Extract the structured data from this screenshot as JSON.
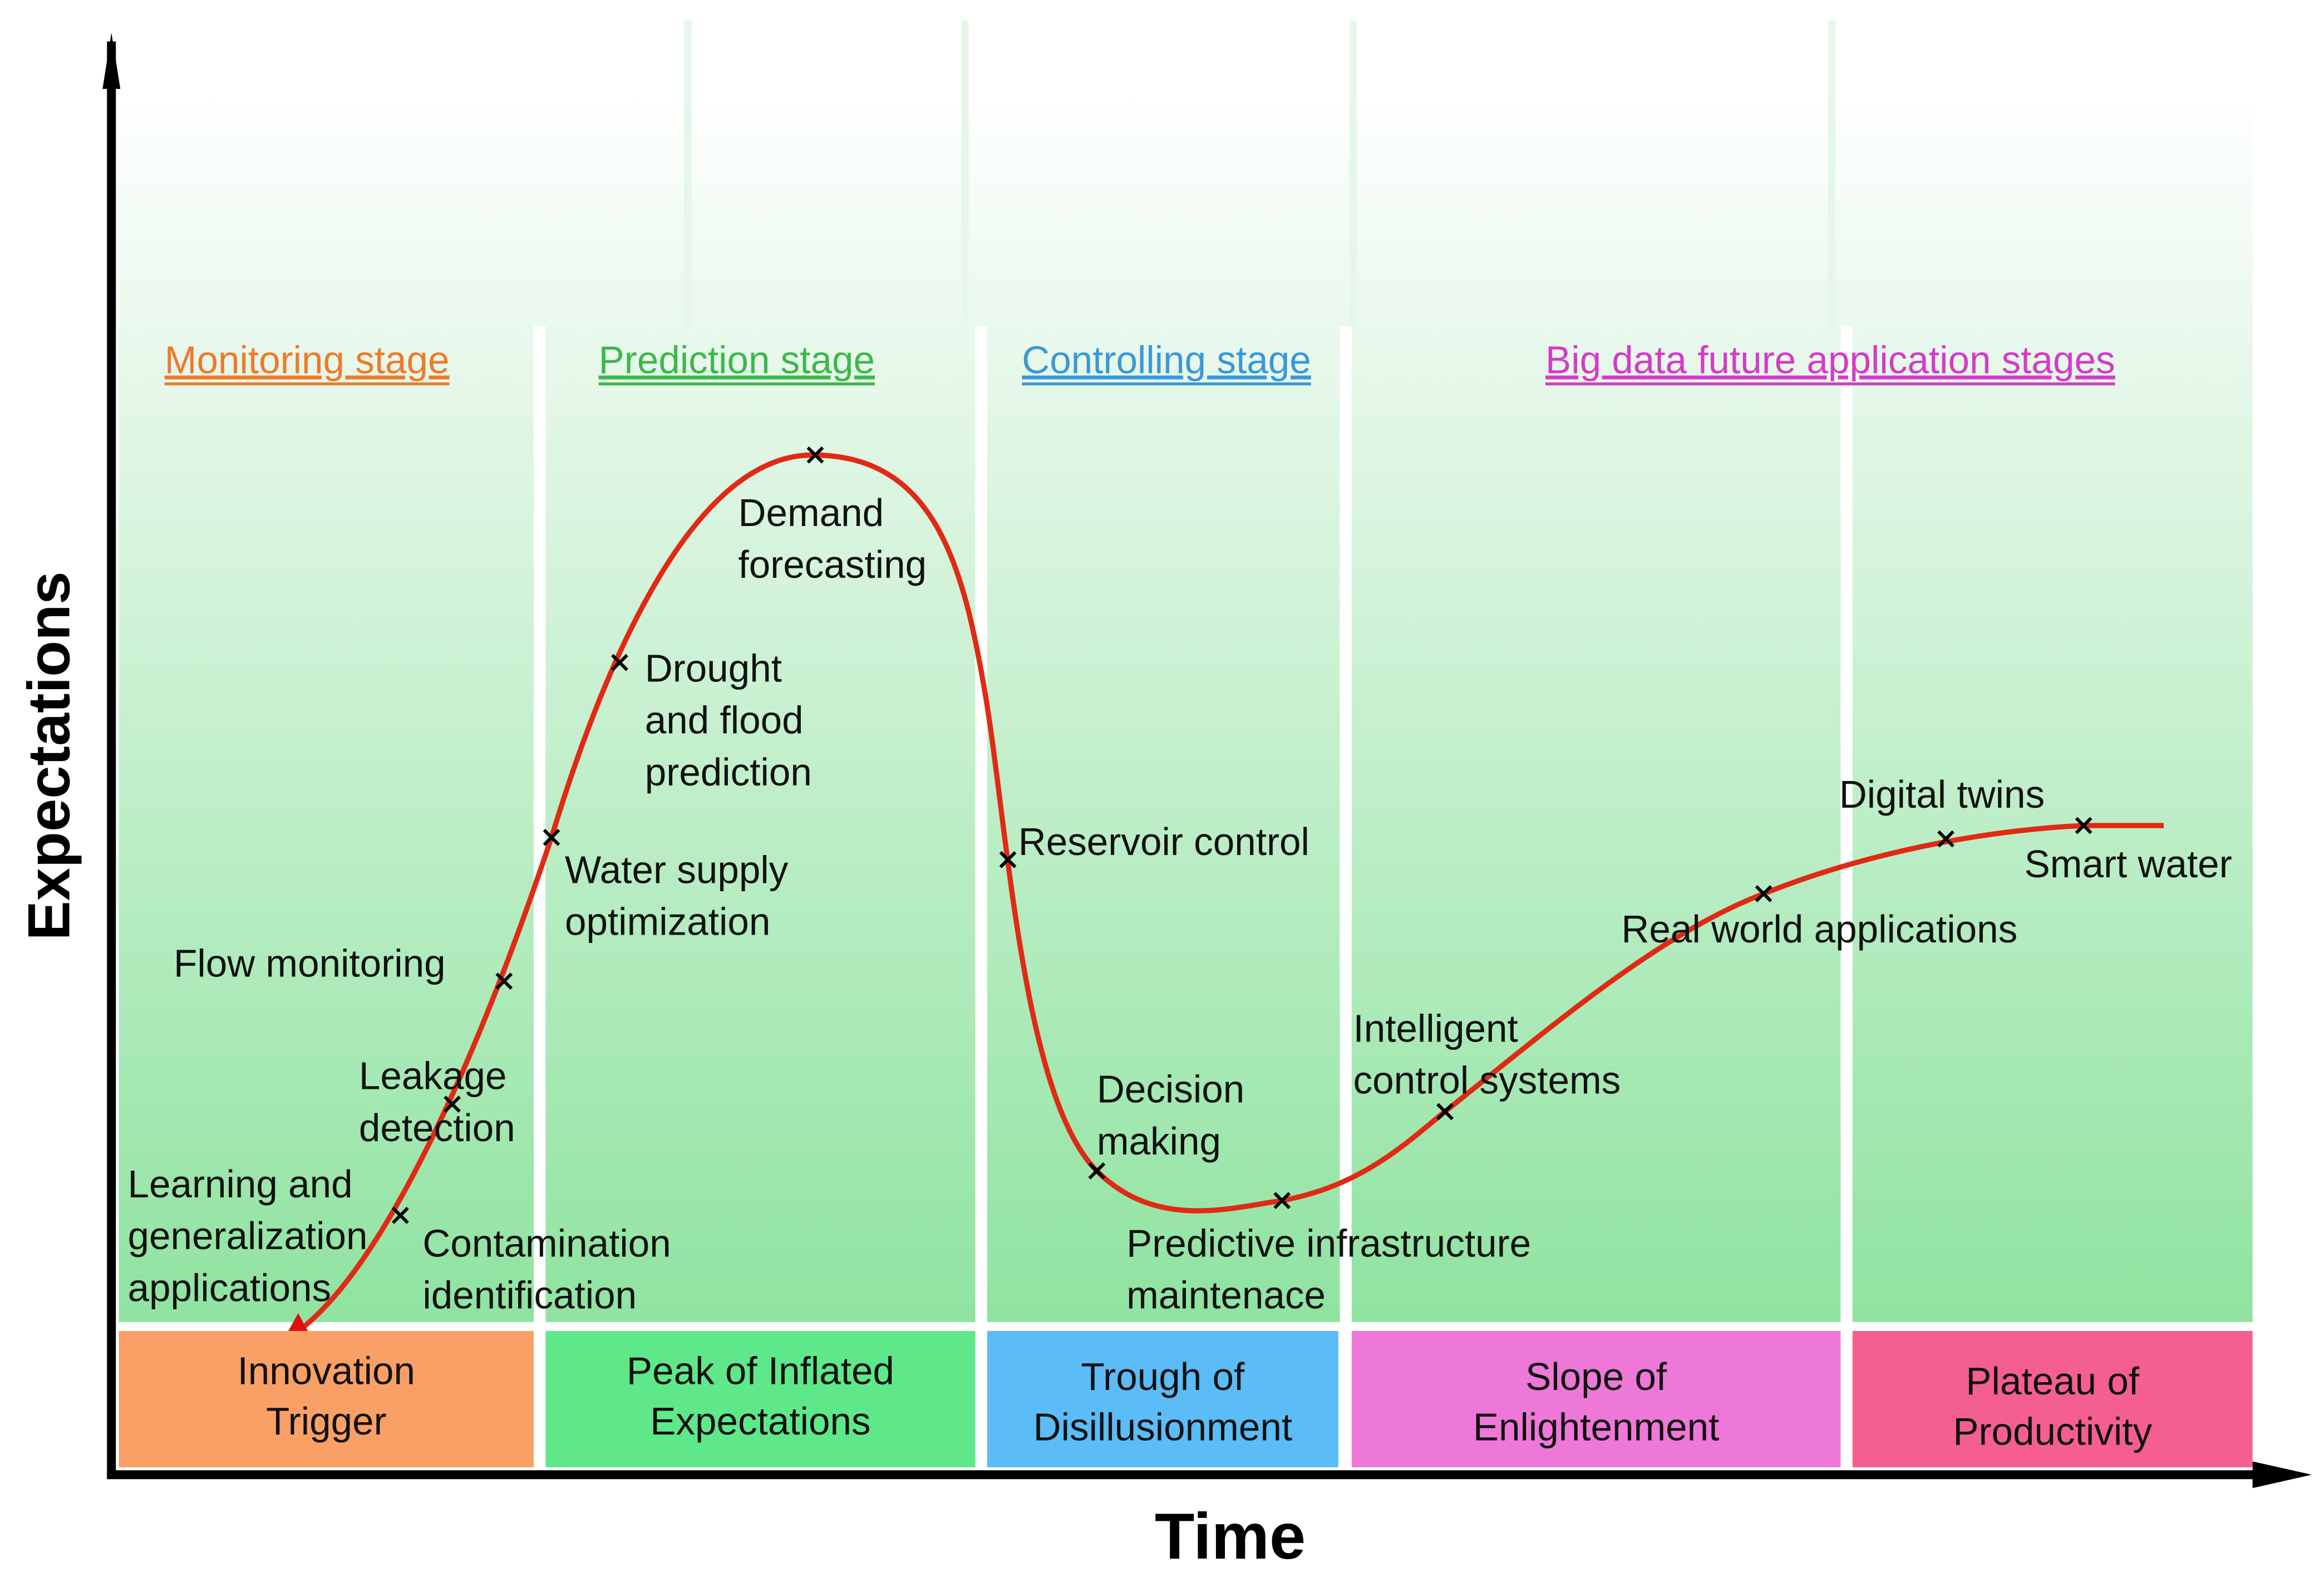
{
  "axes": {
    "y_label": "Expectations",
    "x_label": "Time"
  },
  "stages": [
    {
      "label": "Monitoring stage",
      "color": "#ef7a2a"
    },
    {
      "label": "Prediction stage",
      "color": "#3cb84a"
    },
    {
      "label": "Controlling stage",
      "color": "#3a98d8"
    },
    {
      "label": "Big data future application stages",
      "color": "#d63ac8"
    }
  ],
  "phases": [
    {
      "lines": [
        "Innovation",
        "Trigger"
      ],
      "color": "#f9a066"
    },
    {
      "lines": [
        "Peak of Inflated",
        "Expectations"
      ],
      "color": "#5fe88a"
    },
    {
      "lines": [
        "Trough of",
        "Disillusionment"
      ],
      "color": "#5bbcf7"
    },
    {
      "lines": [
        "Slope of",
        "Enlightenment"
      ],
      "color": "#ee78d8"
    },
    {
      "lines": [
        "Plateau of",
        "Productivity"
      ],
      "color": "#f55f8f"
    }
  ],
  "annotations": [
    {
      "lines": [
        "Learning and",
        "generalization",
        "applications"
      ]
    },
    {
      "lines": [
        "Contamination",
        "identification"
      ]
    },
    {
      "lines": [
        "Leakage",
        "detection"
      ]
    },
    {
      "lines": [
        "Flow monitoring"
      ]
    },
    {
      "lines": [
        "Water supply",
        "optimization"
      ]
    },
    {
      "lines": [
        "Drought",
        "and flood",
        "prediction"
      ]
    },
    {
      "lines": [
        "Demand",
        "forecasting"
      ]
    },
    {
      "lines": [
        "Reservoir control"
      ]
    },
    {
      "lines": [
        "Decision",
        "making"
      ]
    },
    {
      "lines": [
        "Predictive infrastructure",
        "maintenace"
      ]
    },
    {
      "lines": [
        "Intelligent",
        "control systems"
      ]
    },
    {
      "lines": [
        "Real world applications"
      ]
    },
    {
      "lines": [
        "Digital twins"
      ]
    },
    {
      "lines": [
        "Smart water"
      ]
    }
  ]
}
